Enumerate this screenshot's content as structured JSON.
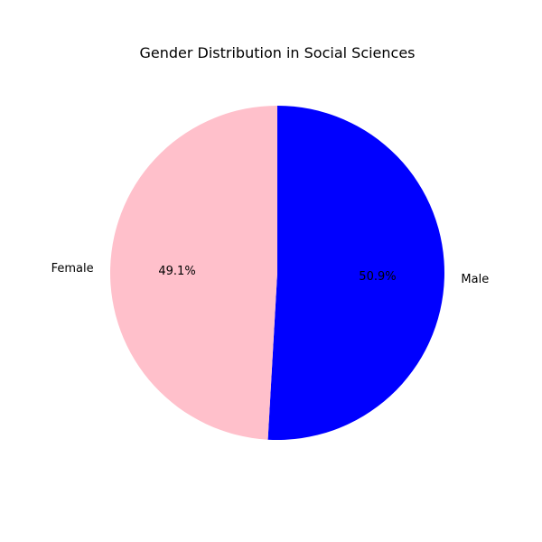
{
  "chart_data": {
    "type": "pie",
    "title": "Gender Distribution in Social Sciences",
    "slices": [
      {
        "label": "Male",
        "value": 50.9,
        "pct_label": "50.9%",
        "color": "#0000ff"
      },
      {
        "label": "Female",
        "value": 49.1,
        "pct_label": "49.1%",
        "color": "#ffc0cb"
      }
    ],
    "start_angle_deg": 90,
    "direction": "clockwise",
    "legend": "none"
  }
}
